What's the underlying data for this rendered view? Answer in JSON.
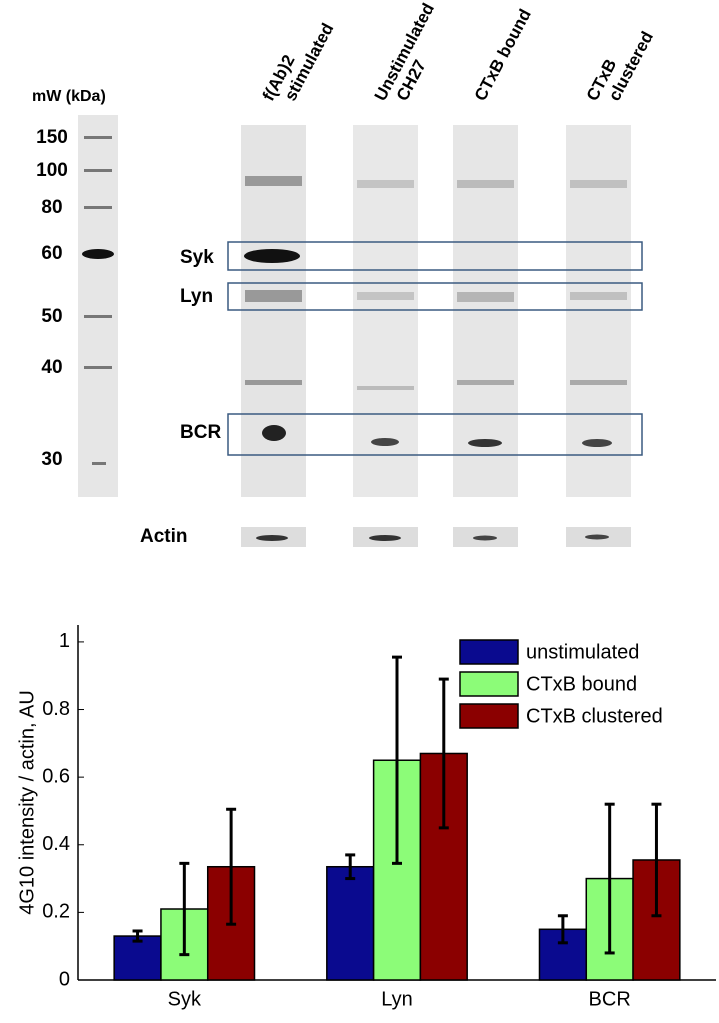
{
  "blot": {
    "marker_title": "mW (kDa)",
    "markers": [
      "150",
      "100",
      "80",
      "60",
      "50",
      "40",
      "30"
    ],
    "lanes": [
      [
        "f(Ab)2",
        "stimulated"
      ],
      [
        "Unstimulated",
        "CH27"
      ],
      [
        "CTxB bound"
      ],
      [
        "CTxB",
        "clustered"
      ]
    ],
    "bands": [
      "Syk",
      "Lyn",
      "BCR"
    ],
    "loading_control": "Actin"
  },
  "chart_data": {
    "type": "bar",
    "ylabel": "4G10 intensity / actin, AU",
    "categories": [
      "Syk",
      "Lyn",
      "BCR"
    ],
    "series": [
      {
        "name": "unstimulated",
        "color": "#0a0a8f",
        "values": [
          0.13,
          0.335,
          0.15
        ],
        "errors": [
          0.015,
          0.035,
          0.04
        ]
      },
      {
        "name": "CTxB bound",
        "color": "#8cfc78",
        "values": [
          0.21,
          0.65,
          0.3
        ],
        "errors": [
          0.135,
          0.305,
          0.22
        ]
      },
      {
        "name": "CTxB clustered",
        "color": "#8b0000",
        "values": [
          0.335,
          0.67,
          0.355
        ],
        "errors": [
          0.17,
          0.22,
          0.165
        ]
      }
    ],
    "ylim": [
      0,
      1.05
    ],
    "yticks": [
      0,
      0.2,
      0.4,
      0.6,
      0.8,
      1
    ],
    "grid": false,
    "legend": "upper right"
  }
}
